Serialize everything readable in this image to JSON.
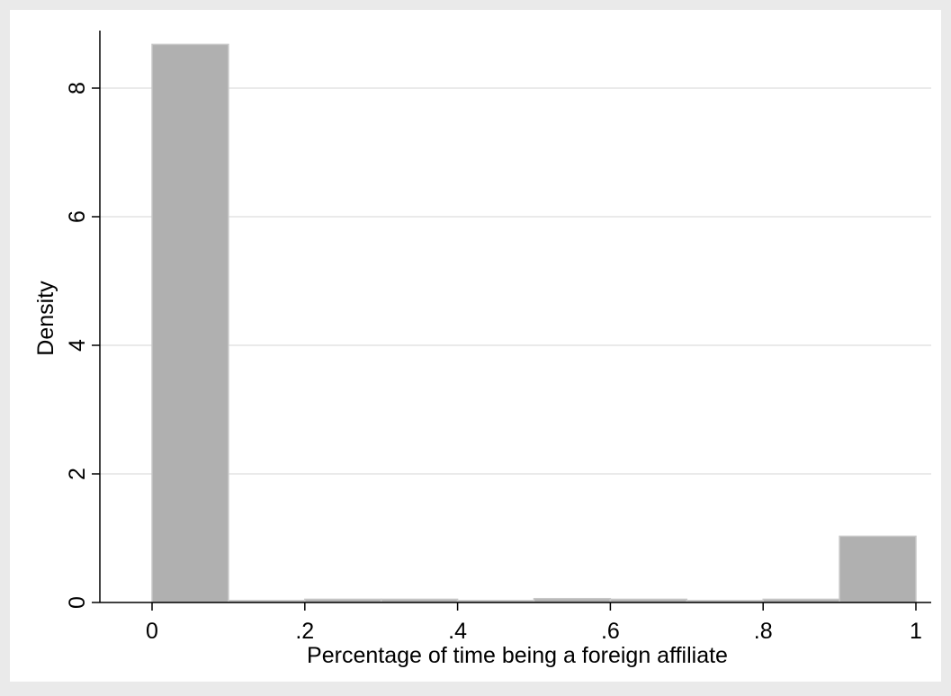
{
  "chart_data": {
    "type": "bar",
    "xlabel": "Percentage of time being a foreign affiliate",
    "ylabel": "Density",
    "xlim": [
      0,
      1
    ],
    "ylim": [
      0,
      8.7
    ],
    "bin_edges": [
      0,
      0.1,
      0.2,
      0.3,
      0.4,
      0.5,
      0.6,
      0.7,
      0.8,
      0.9,
      1.0
    ],
    "values": [
      8.68,
      0.03,
      0.05,
      0.05,
      0.03,
      0.06,
      0.05,
      0.03,
      0.05,
      1.03
    ],
    "x_ticks": [
      {
        "value": 0,
        "label": "0"
      },
      {
        "value": 0.2,
        "label": ".2"
      },
      {
        "value": 0.4,
        "label": ".4"
      },
      {
        "value": 0.6,
        "label": ".6"
      },
      {
        "value": 0.8,
        "label": ".8"
      },
      {
        "value": 1,
        "label": "1"
      }
    ],
    "y_ticks": [
      {
        "value": 0,
        "label": "0"
      },
      {
        "value": 2,
        "label": "2"
      },
      {
        "value": 4,
        "label": "4"
      },
      {
        "value": 6,
        "label": "6"
      },
      {
        "value": 8,
        "label": "8"
      }
    ],
    "grid": true,
    "colors": {
      "background": "#eaeaea",
      "plot_area": "#ffffff",
      "bar_fill": "#b0b0b0",
      "bar_stroke": "#c8c8c8",
      "grid": "#eaeaea",
      "axis": "#000000"
    }
  }
}
